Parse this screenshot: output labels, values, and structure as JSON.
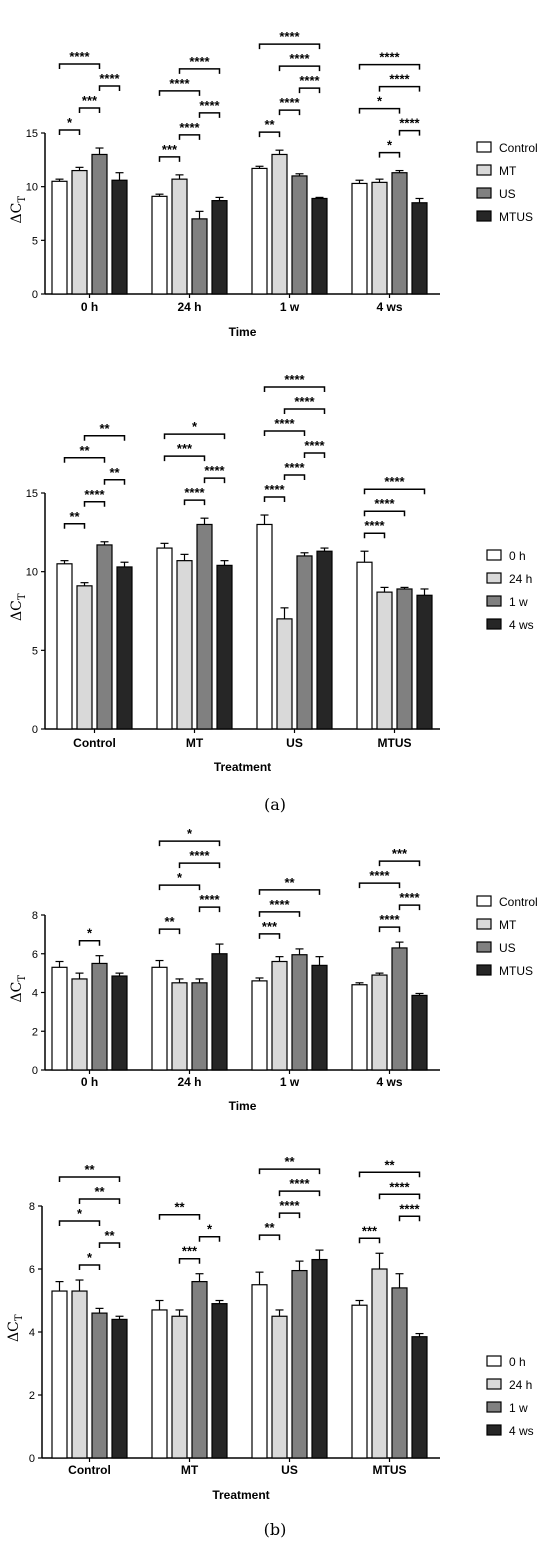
{
  "y_axis_label": "ΔC",
  "y_axis_subscript": "T",
  "colors": {
    "level0": "#ffffff",
    "level1": "#d9d9d9",
    "level2": "#808080",
    "level3": "#262626"
  },
  "panel_labels": [
    "(a)",
    "(b)"
  ],
  "chart_data": [
    {
      "type": "bar",
      "xlabel": "Time",
      "categories": [
        "0 h",
        "24 h",
        "1 w",
        "4 ws"
      ],
      "ylim": [
        0,
        15
      ],
      "yticks": [
        0,
        5,
        10,
        15
      ],
      "legend": "right",
      "series": [
        {
          "name": "Control",
          "values": [
            10.5,
            9.1,
            11.7,
            10.3
          ],
          "err": [
            0.2,
            0.2,
            0.2,
            0.3
          ]
        },
        {
          "name": "MT",
          "values": [
            11.5,
            10.7,
            13.0,
            10.4
          ],
          "err": [
            0.3,
            0.4,
            0.4,
            0.3
          ]
        },
        {
          "name": "US",
          "values": [
            13.0,
            7.0,
            11.0,
            11.3
          ],
          "err": [
            0.6,
            0.7,
            0.2,
            0.2
          ]
        },
        {
          "name": "MTUS",
          "values": [
            10.6,
            8.7,
            8.9,
            8.5
          ],
          "err": [
            0.7,
            0.3,
            0.1,
            0.4
          ]
        }
      ],
      "significance": [
        {
          "group": 0,
          "from": 0,
          "to": 1,
          "label": "*"
        },
        {
          "group": 0,
          "from": 0,
          "to": 2,
          "label": "****"
        },
        {
          "group": 0,
          "from": 1,
          "to": 2,
          "label": "***"
        },
        {
          "group": 0,
          "from": 2,
          "to": 3,
          "label": "****"
        },
        {
          "group": 1,
          "from": 0,
          "to": 1,
          "label": "***"
        },
        {
          "group": 1,
          "from": 0,
          "to": 2,
          "label": "****"
        },
        {
          "group": 1,
          "from": 1,
          "to": 2,
          "label": "****"
        },
        {
          "group": 1,
          "from": 1,
          "to": 3,
          "label": "****"
        },
        {
          "group": 1,
          "from": 2,
          "to": 3,
          "label": "****"
        },
        {
          "group": 2,
          "from": 0,
          "to": 1,
          "label": "**"
        },
        {
          "group": 2,
          "from": 0,
          "to": 3,
          "label": "****"
        },
        {
          "group": 2,
          "from": 1,
          "to": 2,
          "label": "****"
        },
        {
          "group": 2,
          "from": 1,
          "to": 3,
          "label": "****"
        },
        {
          "group": 2,
          "from": 2,
          "to": 3,
          "label": "****"
        },
        {
          "group": 3,
          "from": 0,
          "to": 2,
          "label": "*"
        },
        {
          "group": 3,
          "from": 0,
          "to": 3,
          "label": "****"
        },
        {
          "group": 3,
          "from": 1,
          "to": 2,
          "label": "*"
        },
        {
          "group": 3,
          "from": 1,
          "to": 3,
          "label": "****"
        },
        {
          "group": 3,
          "from": 2,
          "to": 3,
          "label": "****"
        }
      ]
    },
    {
      "type": "bar",
      "xlabel": "Treatment",
      "categories": [
        "Control",
        "MT",
        "US",
        "MTUS"
      ],
      "ylim": [
        0,
        15
      ],
      "yticks": [
        0,
        5,
        10,
        15
      ],
      "legend": "right",
      "series": [
        {
          "name": "0 h",
          "values": [
            10.5,
            11.5,
            13.0,
            10.6
          ],
          "err": [
            0.2,
            0.3,
            0.6,
            0.7
          ]
        },
        {
          "name": "24 h",
          "values": [
            9.1,
            10.7,
            7.0,
            8.7
          ],
          "err": [
            0.2,
            0.4,
            0.7,
            0.3
          ]
        },
        {
          "name": "1 w",
          "values": [
            11.7,
            13.0,
            11.0,
            8.9
          ],
          "err": [
            0.2,
            0.4,
            0.2,
            0.1
          ]
        },
        {
          "name": "4 ws",
          "values": [
            10.3,
            10.4,
            11.3,
            8.5
          ],
          "err": [
            0.3,
            0.3,
            0.2,
            0.4
          ]
        }
      ],
      "significance": [
        {
          "group": 0,
          "from": 0,
          "to": 1,
          "label": "**"
        },
        {
          "group": 0,
          "from": 0,
          "to": 2,
          "label": "**"
        },
        {
          "group": 0,
          "from": 1,
          "to": 2,
          "label": "****"
        },
        {
          "group": 0,
          "from": 1,
          "to": 3,
          "label": "**"
        },
        {
          "group": 0,
          "from": 2,
          "to": 3,
          "label": "**"
        },
        {
          "group": 1,
          "from": 0,
          "to": 2,
          "label": "***"
        },
        {
          "group": 1,
          "from": 0,
          "to": 3,
          "label": "*"
        },
        {
          "group": 1,
          "from": 1,
          "to": 2,
          "label": "****"
        },
        {
          "group": 1,
          "from": 2,
          "to": 3,
          "label": "****"
        },
        {
          "group": 2,
          "from": 0,
          "to": 1,
          "label": "****"
        },
        {
          "group": 2,
          "from": 0,
          "to": 2,
          "label": "****"
        },
        {
          "group": 2,
          "from": 0,
          "to": 3,
          "label": "****"
        },
        {
          "group": 2,
          "from": 1,
          "to": 2,
          "label": "****"
        },
        {
          "group": 2,
          "from": 1,
          "to": 3,
          "label": "****"
        },
        {
          "group": 2,
          "from": 2,
          "to": 3,
          "label": "****"
        },
        {
          "group": 3,
          "from": 0,
          "to": 1,
          "label": "****"
        },
        {
          "group": 3,
          "from": 0,
          "to": 2,
          "label": "****"
        },
        {
          "group": 3,
          "from": 0,
          "to": 3,
          "label": "****"
        }
      ]
    },
    {
      "type": "bar",
      "xlabel": "Time",
      "categories": [
        "0 h",
        "24 h",
        "1 w",
        "4 ws"
      ],
      "ylim": [
        0,
        8
      ],
      "yticks": [
        0,
        2,
        4,
        6,
        8
      ],
      "legend": "right",
      "series": [
        {
          "name": "Control",
          "values": [
            5.3,
            5.3,
            4.6,
            4.4
          ],
          "err": [
            0.3,
            0.35,
            0.15,
            0.1
          ]
        },
        {
          "name": "MT",
          "values": [
            4.7,
            4.5,
            5.6,
            4.9
          ],
          "err": [
            0.3,
            0.2,
            0.25,
            0.1
          ]
        },
        {
          "name": "US",
          "values": [
            5.5,
            4.5,
            5.95,
            6.3
          ],
          "err": [
            0.4,
            0.2,
            0.3,
            0.3
          ]
        },
        {
          "name": "MTUS",
          "values": [
            4.85,
            6.0,
            5.4,
            3.85
          ],
          "err": [
            0.15,
            0.5,
            0.45,
            0.1
          ]
        }
      ],
      "significance": [
        {
          "group": 0,
          "from": 1,
          "to": 2,
          "label": "*"
        },
        {
          "group": 1,
          "from": 0,
          "to": 1,
          "label": "**"
        },
        {
          "group": 1,
          "from": 0,
          "to": 2,
          "label": "*"
        },
        {
          "group": 1,
          "from": 0,
          "to": 3,
          "label": "*"
        },
        {
          "group": 1,
          "from": 1,
          "to": 3,
          "label": "****"
        },
        {
          "group": 1,
          "from": 2,
          "to": 3,
          "label": "****"
        },
        {
          "group": 2,
          "from": 0,
          "to": 1,
          "label": "***"
        },
        {
          "group": 2,
          "from": 0,
          "to": 2,
          "label": "****"
        },
        {
          "group": 2,
          "from": 0,
          "to": 3,
          "label": "**"
        },
        {
          "group": 3,
          "from": 0,
          "to": 2,
          "label": "****"
        },
        {
          "group": 3,
          "from": 1,
          "to": 2,
          "label": "****"
        },
        {
          "group": 3,
          "from": 1,
          "to": 3,
          "label": "***"
        },
        {
          "group": 3,
          "from": 2,
          "to": 3,
          "label": "****"
        }
      ]
    },
    {
      "type": "bar",
      "xlabel": "Treatment",
      "categories": [
        "Control",
        "MT",
        "US",
        "MTUS"
      ],
      "ylim": [
        0,
        8
      ],
      "yticks": [
        0,
        2,
        4,
        6,
        8
      ],
      "legend": "right",
      "series": [
        {
          "name": "0 h",
          "values": [
            5.3,
            4.7,
            5.5,
            4.85
          ],
          "err": [
            0.3,
            0.3,
            0.4,
            0.15
          ]
        },
        {
          "name": "24 h",
          "values": [
            5.3,
            4.5,
            4.5,
            6.0
          ],
          "err": [
            0.35,
            0.2,
            0.2,
            0.5
          ]
        },
        {
          "name": "1 w",
          "values": [
            4.6,
            5.6,
            5.95,
            5.4
          ],
          "err": [
            0.15,
            0.25,
            0.3,
            0.45
          ]
        },
        {
          "name": "4 ws",
          "values": [
            4.4,
            4.9,
            6.3,
            3.85
          ],
          "err": [
            0.1,
            0.1,
            0.3,
            0.1
          ]
        }
      ],
      "significance": [
        {
          "group": 0,
          "from": 0,
          "to": 2,
          "label": "*"
        },
        {
          "group": 0,
          "from": 0,
          "to": 3,
          "label": "**"
        },
        {
          "group": 0,
          "from": 1,
          "to": 2,
          "label": "*"
        },
        {
          "group": 0,
          "from": 1,
          "to": 3,
          "label": "**"
        },
        {
          "group": 0,
          "from": 2,
          "to": 3,
          "label": "**"
        },
        {
          "group": 1,
          "from": 0,
          "to": 2,
          "label": "**"
        },
        {
          "group": 1,
          "from": 1,
          "to": 2,
          "label": "***"
        },
        {
          "group": 1,
          "from": 2,
          "to": 3,
          "label": "*"
        },
        {
          "group": 2,
          "from": 0,
          "to": 1,
          "label": "**"
        },
        {
          "group": 2,
          "from": 0,
          "to": 3,
          "label": "**"
        },
        {
          "group": 2,
          "from": 1,
          "to": 2,
          "label": "****"
        },
        {
          "group": 2,
          "from": 1,
          "to": 3,
          "label": "****"
        },
        {
          "group": 3,
          "from": 0,
          "to": 1,
          "label": "***"
        },
        {
          "group": 3,
          "from": 0,
          "to": 3,
          "label": "**"
        },
        {
          "group": 3,
          "from": 1,
          "to": 3,
          "label": "****"
        },
        {
          "group": 3,
          "from": 2,
          "to": 3,
          "label": "****"
        }
      ]
    }
  ]
}
